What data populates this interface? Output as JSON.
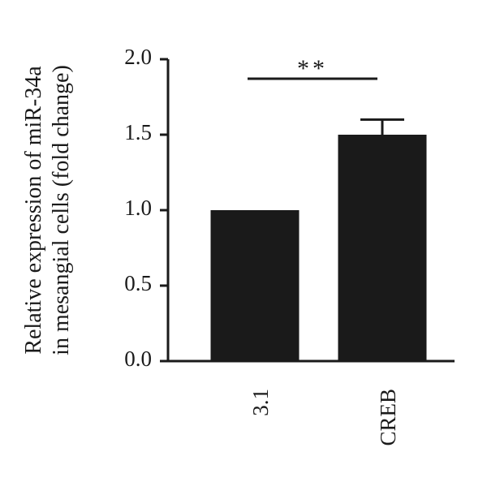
{
  "chart_data": {
    "type": "bar",
    "y_label": [
      "Relative expression of miR-34a",
      "in mesangial cells (fold change)"
    ],
    "categories": [
      "3.1",
      "CREB"
    ],
    "values": [
      1.0,
      1.5
    ],
    "errors": [
      0,
      0.1
    ],
    "color": "#1a1a1a",
    "ylim": [
      0,
      2.0
    ],
    "yticks": [
      {
        "value": 0,
        "label": "0.0"
      },
      0.5,
      {
        "value": 1,
        "label": "1.0"
      },
      1.5,
      {
        "value": 2,
        "label": "2.0"
      }
    ],
    "annotation": "**"
  }
}
